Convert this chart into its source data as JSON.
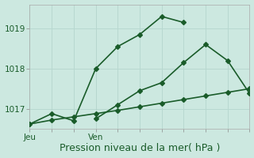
{
  "background_color": "#cce8e0",
  "grid_color": "#b8d8d0",
  "line_color": "#1a5c2a",
  "xlabel": "Pression niveau de la mer( hPa )",
  "xtick_labels_pos": [
    0,
    3
  ],
  "xtick_labels_text": [
    "Jeu",
    "Ven"
  ],
  "ylim": [
    1016.5,
    1019.6
  ],
  "yticks": [
    1017,
    1018,
    1019
  ],
  "xlim": [
    0,
    10
  ],
  "line1_x": [
    0,
    1,
    2,
    3,
    4,
    5,
    6,
    7
  ],
  "line1_y": [
    1016.62,
    1016.88,
    1016.7,
    1018.0,
    1018.55,
    1018.85,
    1019.3,
    1019.15
  ],
  "line2_x": [
    3,
    4,
    5,
    6,
    7,
    8,
    9,
    10
  ],
  "line2_y": [
    1016.75,
    1017.1,
    1017.45,
    1017.65,
    1018.15,
    1018.6,
    1018.2,
    1017.38
  ],
  "line3_x": [
    0,
    1,
    2,
    3,
    4,
    5,
    6,
    7,
    8,
    9,
    10
  ],
  "line3_y": [
    1016.62,
    1016.72,
    1016.8,
    1016.88,
    1016.96,
    1017.05,
    1017.14,
    1017.23,
    1017.32,
    1017.41,
    1017.5
  ],
  "vline_x": [
    0,
    3
  ],
  "marker": "D",
  "markersize": 3,
  "linewidth": 1.2,
  "xlabel_fontsize": 9,
  "tick_fontsize": 7.5
}
